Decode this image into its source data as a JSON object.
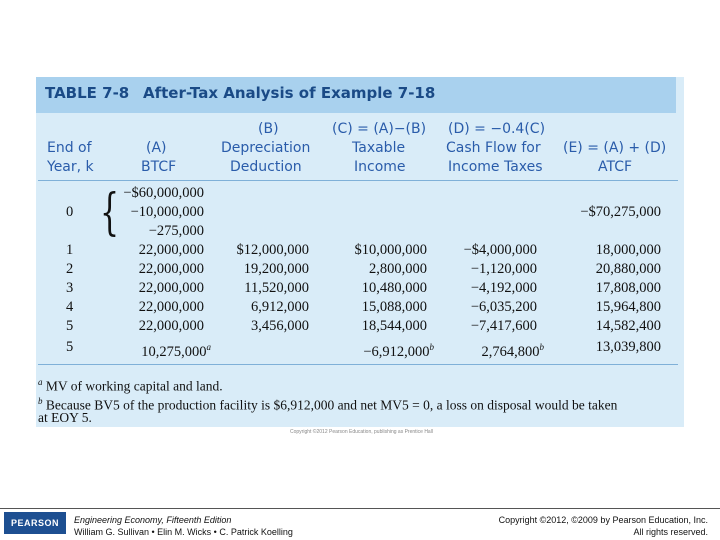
{
  "table": {
    "label": "TABLE 7-8",
    "title": "After-Tax Analysis of Example 7-18",
    "headers": [
      {
        "top": "",
        "mid": "End of",
        "bot": "Year, k"
      },
      {
        "top": "",
        "mid": "(A)",
        "bot": "BTCF"
      },
      {
        "top": "(B)",
        "mid": "Depreciation",
        "bot": "Deduction"
      },
      {
        "top": "(C) = (A)−(B)",
        "mid": "Taxable",
        "bot": "Income"
      },
      {
        "top": "(D) = −0.4(C)",
        "mid": "Cash Flow for",
        "bot": "Income Taxes"
      },
      {
        "top": "",
        "mid": "(E) = (A) + (D)",
        "bot": "ATCF"
      }
    ],
    "year0": {
      "year": "0",
      "btcf": [
        "−$60,000,000",
        "−10,000,000",
        "−275,000"
      ],
      "atcf": "−$70,275,000"
    },
    "rows": [
      {
        "year": "1",
        "btcf": "22,000,000",
        "dep": "$12,000,000",
        "taxable": "$10,000,000",
        "taxes": "−$4,000,000",
        "atcf": "18,000,000"
      },
      {
        "year": "2",
        "btcf": "22,000,000",
        "dep": "19,200,000",
        "taxable": "2,800,000",
        "taxes": "−1,120,000",
        "atcf": "20,880,000"
      },
      {
        "year": "3",
        "btcf": "22,000,000",
        "dep": "11,520,000",
        "taxable": "10,480,000",
        "taxes": "−4,192,000",
        "atcf": "17,808,000"
      },
      {
        "year": "4",
        "btcf": "22,000,000",
        "dep": "6,912,000",
        "taxable": "15,088,000",
        "taxes": "−6,035,200",
        "atcf": "15,964,800"
      },
      {
        "year": "5",
        "btcf": "22,000,000",
        "dep": "3,456,000",
        "taxable": "18,544,000",
        "taxes": "−7,417,600",
        "atcf": "14,582,400"
      },
      {
        "year": "5",
        "btcf": "10,275,000",
        "btcf_sup": "a",
        "dep": "",
        "taxable": "−6,912,000",
        "taxable_sup": "b",
        "taxes": "2,764,800",
        "taxes_sup": "b",
        "atcf": "13,039,800"
      }
    ],
    "notes": {
      "a_marker": "a",
      "a_text": "MV of working capital and land.",
      "b_marker": "b",
      "b_line1": "Because BV5 of the production facility is $6,912,000 and net MV5 = 0, a loss on disposal would be taken",
      "b_line2": "at EOY 5."
    },
    "copyright_small": "Copyright ©2012 Pearson Education, publishing as Prentice Hall"
  },
  "footer": {
    "logo": "PEARSON",
    "book": "Engineering Economy, Fifteenth Edition",
    "authors": "William G. Sullivan • Elin M. Wicks • C. Patrick Koelling",
    "copyright1": "Copyright ©2012, ©2009 by Pearson Education, Inc.",
    "copyright2": "All rights reserved."
  }
}
